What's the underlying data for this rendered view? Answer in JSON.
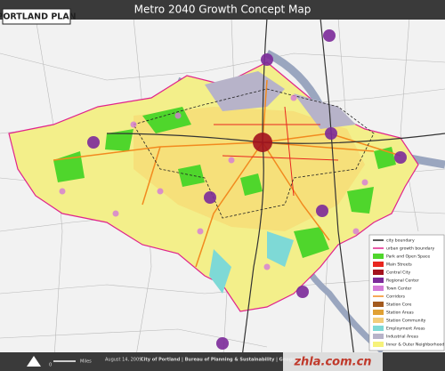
{
  "header": {
    "logo": "PORTLAND PLAN",
    "title": "Metro 2040 Growth Concept Map"
  },
  "legend": {
    "items": [
      {
        "label": "city boundary",
        "color": "#222222",
        "kind": "line"
      },
      {
        "label": "urban growth boundary",
        "color": "#e0238c",
        "kind": "line"
      },
      {
        "label": "Park and Open Space",
        "color": "#4fd62c",
        "kind": "box"
      },
      {
        "label": "Main Streets",
        "color": "#e8261f",
        "kind": "box"
      },
      {
        "label": "Central City",
        "color": "#a3121e",
        "kind": "box"
      },
      {
        "label": "Regional Center",
        "color": "#7c2a9a",
        "kind": "box"
      },
      {
        "label": "Town Center",
        "color": "#d47ad8",
        "kind": "box"
      },
      {
        "label": "Corridors",
        "color": "#f28a1f",
        "kind": "line"
      },
      {
        "label": "Station Core",
        "color": "#a35a1e",
        "kind": "box"
      },
      {
        "label": "Station Areas",
        "color": "#e0a033",
        "kind": "box"
      },
      {
        "label": "Station Community",
        "color": "#f3cd7a",
        "kind": "box"
      },
      {
        "label": "Employment Areas",
        "color": "#7ed9d6",
        "kind": "box"
      },
      {
        "label": "Industrial Areas",
        "color": "#b7b3c9",
        "kind": "box"
      },
      {
        "label": "Inner & Outer Neighborhood",
        "color": "#f6f27a",
        "kind": "box"
      }
    ]
  },
  "footer": {
    "date": "August 14, 2009",
    "credit": "City of Portland | Bureau of Planning & Sustainability | Geographic",
    "scale_unit": "Miles",
    "scale_zero": "0"
  },
  "watermark": "zhla.com.cn"
}
